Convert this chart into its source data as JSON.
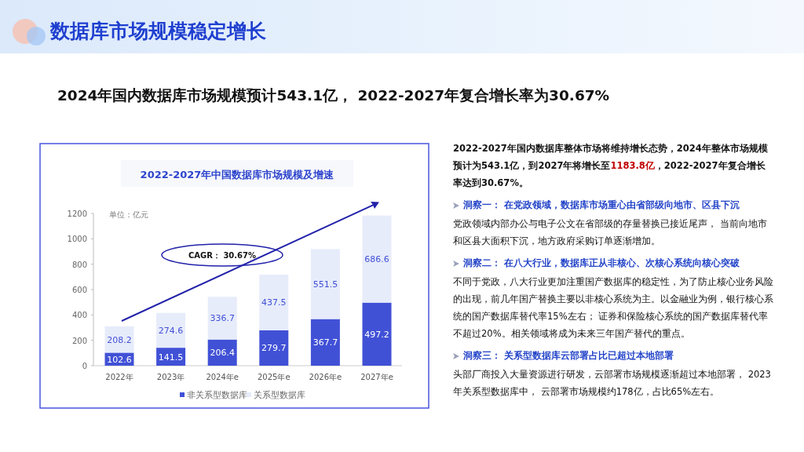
{
  "chart_data": {
    "type": "bar",
    "title": "数据库市场规模稳定增长",
    "subtitle": "2024年国内数据库市场规模预计543.1亿， 2022-2027年复合增长率为30.67%",
    "categories": [
      "2022年",
      "2023年",
      "2024年e",
      "2025年e",
      "2026年e",
      "2027年e"
    ],
    "series": [
      {
        "name": "非关系型数据库",
        "color": "#4151d6",
        "values": [
          102.6,
          141.5,
          206.4,
          279.7,
          367.7,
          497.2
        ]
      },
      {
        "name": "关系型数据库",
        "color": "#e7ecfb",
        "values": [
          208.2,
          274.6,
          336.7,
          437.5,
          551.5,
          686.6
        ]
      }
    ],
    "stacked": true,
    "data_labels": true,
    "legend": "bottom",
    "grid": false,
    "ylim": [
      0,
      1200
    ],
    "yticks": [
      0,
      200,
      400,
      600,
      800,
      1000,
      1200
    ],
    "annotations": [
      "2022-2027年中国数据库市场规模及增速",
      "单位：亿元",
      "CAGR：  30.67%",
      "2022-2027年国内数据库整体市场将维持增长态势，2024年整体市场规模预计为543.1亿，到2027年将增长至",
      "1183.8亿",
      "，2022-2027年复合增长率达到30.67%。",
      "洞察一： 在党政领域，数据库市场重心由省部级向地市、区县下沉",
      "党政领域内部办公与电子公文在省部级的存量替换已接近尾声， 当前向地市和区县大面积下沉，地方政府采购订单逐渐增加。",
      "洞察二： 在八大行业，数据库正从非核心、次核心系统向核心突破",
      "不同于党政，八大行业更加注重国产数据库的稳定性，为了防止核心业务风险的出现，前几年国产替换主要以非核心系统为主。以金融业为例，银行核心系统的国产数据库替代率15%左右； 证券和保险核心系统的国产数据库替代率不超过20%。相关领域将成为未来三年国产替代的重点。",
      "洞察三： 关系型数据库云部署占比已超过本地部署",
      "头部厂商投入大量资源进行研发，云部署市场规模逐渐超过本地部署， 2023年关系型数据库中， 云部署市场规模约178亿，占比65%左右。"
    ]
  }
}
